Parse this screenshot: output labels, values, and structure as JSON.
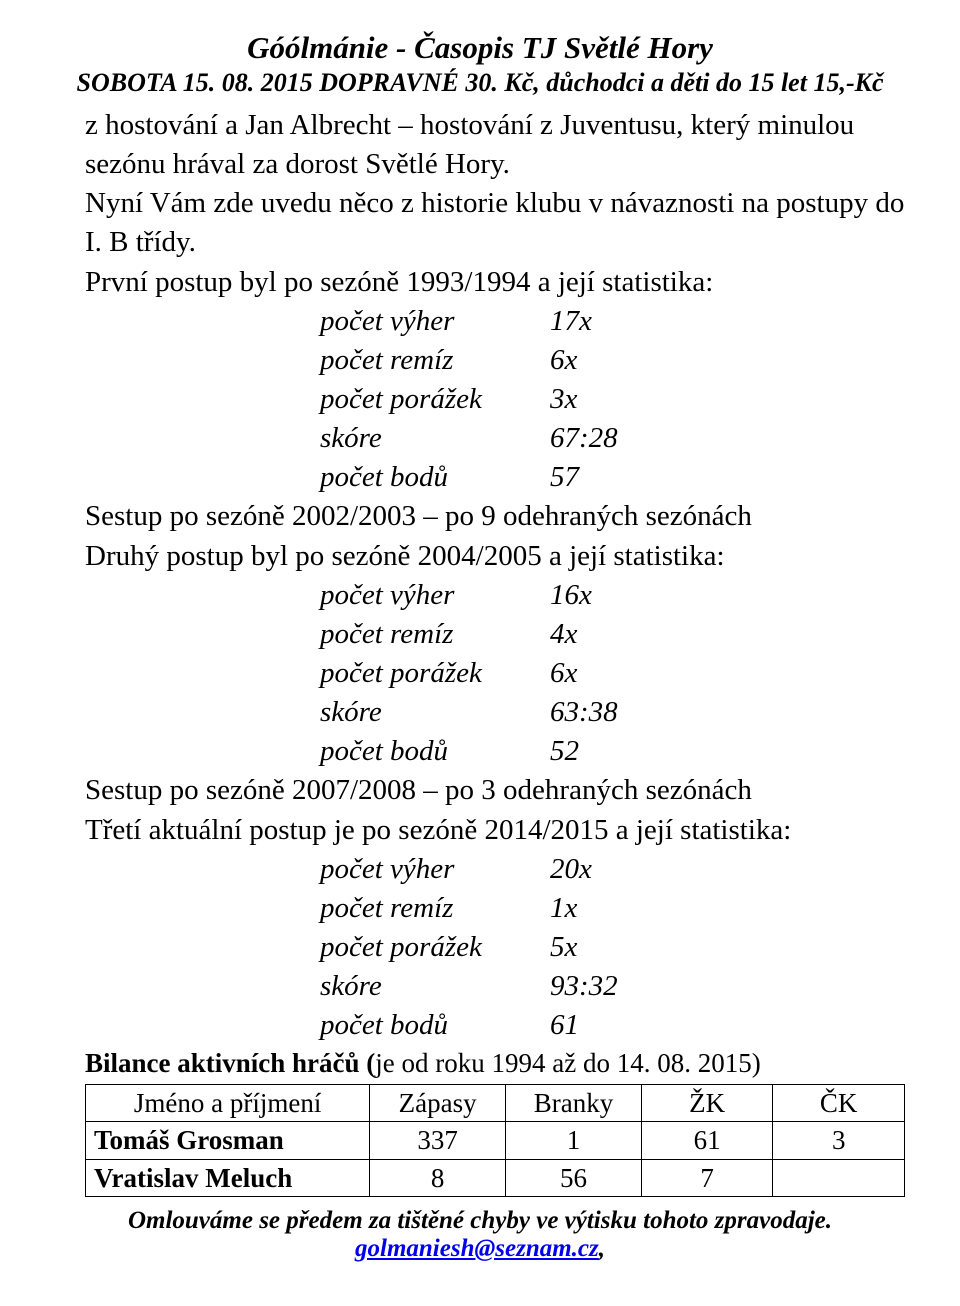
{
  "header": {
    "title": "Góólmánie - Časopis TJ Světlé Hory",
    "subtitle": "SOBOTA 15. 08. 2015   DOPRAVNÉ 30. Kč, důchodci a děti do 15 let 15,-Kč"
  },
  "intro": {
    "p1": "z hostování a Jan Albrecht – hostování z Juventusu, který minulou sezónu hrával za dorost Světlé Hory.",
    "p2": "Nyní Vám zde uvedu něco z historie klubu v návaznosti na postupy do I. B třídy."
  },
  "seasons": [
    {
      "intro": "První postup byl po sezóně 1993/1994 a její statistika:",
      "rows": [
        {
          "label": "počet výher",
          "value": "17x"
        },
        {
          "label": "počet remíz",
          "value": "6x"
        },
        {
          "label": "počet porážek",
          "value": "3x"
        },
        {
          "label": "skóre",
          "value": "67:28"
        },
        {
          "label": "počet bodů",
          "value": "57"
        }
      ],
      "sestup": "Sestup po sezóně 2002/2003 – po 9 odehraných sezónách"
    },
    {
      "intro": "Druhý postup byl po sezóně 2004/2005 a její statistika:",
      "rows": [
        {
          "label": "počet výher",
          "value": "16x"
        },
        {
          "label": "počet remíz",
          "value": "4x"
        },
        {
          "label": "počet porážek",
          "value": "6x"
        },
        {
          "label": "skóre",
          "value": "63:38"
        },
        {
          "label": "počet bodů",
          "value": "52"
        }
      ],
      "sestup": "Sestup po sezóně 2007/2008 – po 3 odehraných sezónách"
    },
    {
      "intro": "Třetí aktuální postup je po sezóně 2014/2015 a její statistika:",
      "rows": [
        {
          "label": "počet výher",
          "value": "20x"
        },
        {
          "label": "počet remíz",
          "value": "1x"
        },
        {
          "label": "počet porážek",
          "value": "5x"
        },
        {
          "label": "skóre",
          "value": "93:32"
        },
        {
          "label": "počet bodů",
          "value": "61"
        }
      ],
      "sestup": ""
    }
  ],
  "bilance": {
    "bold": "Bilance aktivních hráčů (",
    "rest": "je od roku 1994 až do 14. 08. 2015)"
  },
  "table": {
    "columns": [
      "Jméno a příjmení",
      "Zápasy",
      "Branky",
      "ŽK",
      "ČK"
    ],
    "rows": [
      {
        "name": "Tomáš Grosman",
        "zap": "337",
        "br": "1",
        "zk": "61",
        "ck": "3"
      },
      {
        "name": "Vratislav Meluch",
        "zap": "8",
        "br": "56",
        "zk": "7",
        "ck": ""
      }
    ]
  },
  "footer": {
    "line1": "Omlouváme se předem za tištěné chyby ve výtisku tohoto zpravodaje.",
    "link": "golmaniesh@seznam.cz",
    "comma": ","
  }
}
